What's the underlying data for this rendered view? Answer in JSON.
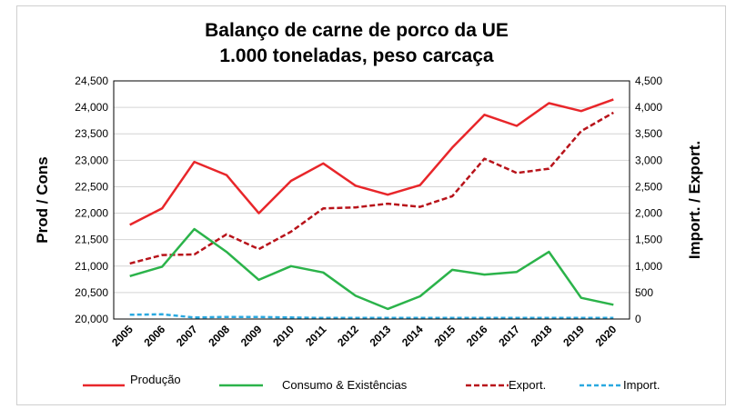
{
  "chart_data": {
    "type": "line",
    "title_lines": [
      "Balanço de carne de porco da UE",
      "1.000 toneladas, peso carcaça"
    ],
    "ylabel": "Prod / Cons",
    "y2label": "Import. / Export.",
    "categories": [
      "2005",
      "2006",
      "2007",
      "2008",
      "2009",
      "2010",
      "2011",
      "2012",
      "2013",
      "2014",
      "2015",
      "2016",
      "2017",
      "2018",
      "2019",
      "2020"
    ],
    "ylim": [
      20000,
      24500
    ],
    "y2lim": [
      0,
      4500
    ],
    "yticks": [
      20000,
      20500,
      21000,
      21500,
      22000,
      22500,
      23000,
      23500,
      24000,
      24500
    ],
    "ytick_labels": [
      "20,000",
      "20,500",
      "21,000",
      "21,500",
      "22,000",
      "22,500",
      "23,000",
      "23,500",
      "24,000",
      "24,500"
    ],
    "y2ticks": [
      0,
      500,
      1000,
      1500,
      2000,
      2500,
      3000,
      3500,
      4000,
      4500
    ],
    "y2tick_labels": [
      "0",
      "500",
      "1,000",
      "1,500",
      "2,000",
      "2,500",
      "3,000",
      "3,500",
      "4,000",
      "4,500"
    ],
    "grid": true,
    "legend_position": "bottom",
    "series": [
      {
        "name": "Produção",
        "axis": "left",
        "color": "#e8262a",
        "style": "solid",
        "values": [
          21780,
          22090,
          22970,
          22720,
          22000,
          22610,
          22940,
          22520,
          22350,
          22530,
          23240,
          23860,
          23650,
          24080,
          23930,
          24150
        ]
      },
      {
        "name": "Consumo & Existências",
        "axis": "left",
        "color": "#2bb34a",
        "style": "solid",
        "values": [
          20810,
          20990,
          21700,
          21270,
          20740,
          21000,
          20880,
          20440,
          20190,
          20430,
          20930,
          20840,
          20890,
          21270,
          20400,
          20270
        ]
      },
      {
        "name": "Export.",
        "axis": "right",
        "color": "#b8131a",
        "style": "dashed",
        "values": [
          1050,
          1210,
          1220,
          1600,
          1320,
          1650,
          2090,
          2110,
          2180,
          2120,
          2320,
          3030,
          2760,
          2840,
          3550,
          3900
        ]
      },
      {
        "name": "Import.",
        "axis": "right",
        "color": "#2aa9e0",
        "style": "dashed",
        "values": [
          80,
          90,
          30,
          40,
          40,
          30,
          20,
          20,
          20,
          20,
          20,
          20,
          20,
          20,
          20,
          20
        ]
      }
    ]
  }
}
